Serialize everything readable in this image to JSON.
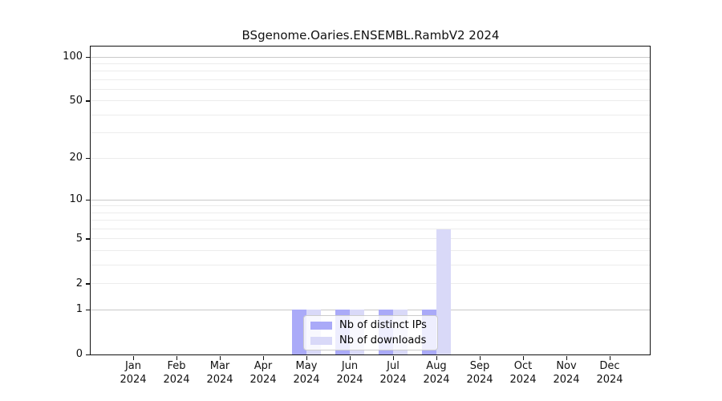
{
  "chart_data": {
    "type": "bar",
    "title": "BSgenome.Oaries.ENSEMBL.RambV2 2024",
    "categories": [
      "Jan",
      "Feb",
      "Mar",
      "Apr",
      "May",
      "Jun",
      "Jul",
      "Aug",
      "Sep",
      "Oct",
      "Nov",
      "Dec"
    ],
    "year_label": "2024",
    "series": [
      {
        "name": "Nb of distinct IPs",
        "color": "#aaaaf8",
        "values": [
          0,
          0,
          0,
          0,
          1,
          1,
          1,
          1,
          0,
          0,
          0,
          0
        ]
      },
      {
        "name": "Nb of downloads",
        "color": "#d9d9f8",
        "values": [
          0,
          0,
          0,
          0,
          1,
          1,
          1,
          6,
          0,
          0,
          0,
          0
        ]
      }
    ],
    "y_axis": {
      "scale": "log1p",
      "max": 100,
      "ticks": [
        0,
        1,
        2,
        5,
        10,
        20,
        50,
        100
      ],
      "minor_gridlines": [
        2,
        3,
        4,
        5,
        6,
        7,
        8,
        9,
        20,
        30,
        40,
        50,
        60,
        70,
        80,
        90
      ],
      "major_gridlines": [
        1,
        10,
        100
      ]
    },
    "x_axis": {
      "tick_position": "category-center"
    },
    "legend": {
      "position": "bottom-center"
    },
    "colors": {
      "grid_minor": "#ececec",
      "grid_major": "#c9c9c9",
      "axis": "#111111",
      "background": "#ffffff"
    }
  }
}
